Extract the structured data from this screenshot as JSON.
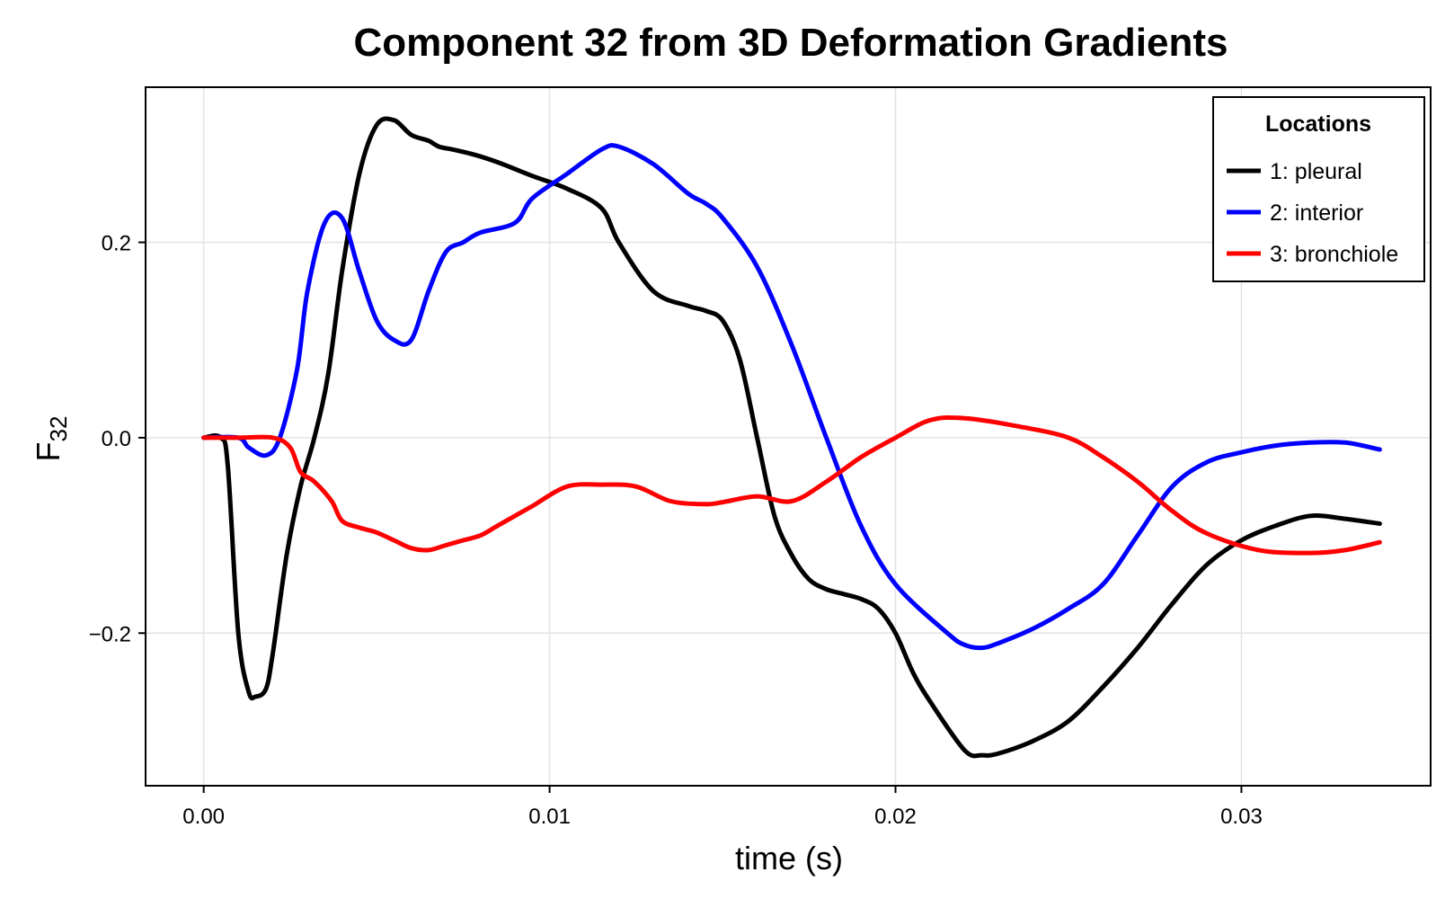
{
  "chart_data": {
    "type": "line",
    "title": "Component 32 from 3D Deformation Gradients",
    "xlabel": "time (s)",
    "ylabel": "F",
    "ylabel_subscript": "32",
    "xlim": [
      -0.00168,
      0.03547
    ],
    "ylim": [
      -0.3562,
      0.3588
    ],
    "xticks": [
      0.0,
      0.01,
      0.02,
      0.03
    ],
    "xtick_labels": [
      "0.00",
      "0.01",
      "0.02",
      "0.03"
    ],
    "yticks": [
      -0.2,
      0.0,
      0.2
    ],
    "ytick_labels": [
      "−0.2",
      "0.0",
      "0.2"
    ],
    "grid": true,
    "legend": {
      "title": "Locations",
      "position": "top-right"
    },
    "series": [
      {
        "name": "1: pleural",
        "color": "#000000",
        "x": [
          0.0,
          0.0005,
          0.0007,
          0.001,
          0.0013,
          0.0015,
          0.0018,
          0.002,
          0.0024,
          0.0028,
          0.0032,
          0.0036,
          0.004,
          0.0045,
          0.005,
          0.0055,
          0.006,
          0.0065,
          0.0068,
          0.0072,
          0.0078,
          0.0085,
          0.0095,
          0.0105,
          0.0115,
          0.012,
          0.013,
          0.014,
          0.0145,
          0.015,
          0.0155,
          0.016,
          0.0165,
          0.017,
          0.0175,
          0.018,
          0.0185,
          0.019,
          0.0195,
          0.02,
          0.0205,
          0.021,
          0.022,
          0.0225,
          0.023,
          0.024,
          0.025,
          0.026,
          0.027,
          0.028,
          0.029,
          0.03,
          0.031,
          0.032,
          0.033,
          0.034
        ],
        "values": [
          0.0,
          0.0,
          -0.03,
          -0.2,
          -0.26,
          -0.265,
          -0.257,
          -0.22,
          -0.12,
          -0.05,
          0.0,
          0.065,
          0.17,
          0.27,
          0.32,
          0.325,
          0.31,
          0.304,
          0.298,
          0.295,
          0.29,
          0.282,
          0.268,
          0.255,
          0.235,
          0.2,
          0.15,
          0.135,
          0.13,
          0.12,
          0.08,
          0.0,
          -0.08,
          -0.12,
          -0.145,
          -0.155,
          -0.16,
          -0.165,
          -0.175,
          -0.2,
          -0.24,
          -0.27,
          -0.32,
          -0.325,
          -0.323,
          -0.31,
          -0.29,
          -0.255,
          -0.215,
          -0.17,
          -0.13,
          -0.105,
          -0.09,
          -0.08,
          -0.083,
          -0.088
        ]
      },
      {
        "name": "2: interior",
        "color": "#0000ff",
        "x": [
          0.0,
          0.001,
          0.0013,
          0.0018,
          0.0022,
          0.0027,
          0.003,
          0.0035,
          0.004,
          0.0045,
          0.005,
          0.0055,
          0.006,
          0.0065,
          0.007,
          0.0075,
          0.008,
          0.009,
          0.0095,
          0.0105,
          0.0115,
          0.012,
          0.013,
          0.014,
          0.0145,
          0.015,
          0.016,
          0.017,
          0.018,
          0.019,
          0.02,
          0.0215,
          0.022,
          0.0225,
          0.023,
          0.024,
          0.025,
          0.026,
          0.027,
          0.028,
          0.029,
          0.03,
          0.031,
          0.032,
          0.033,
          0.034
        ],
        "values": [
          0.0,
          0.0,
          -0.01,
          -0.018,
          0.0,
          0.07,
          0.15,
          0.22,
          0.225,
          0.17,
          0.12,
          0.1,
          0.1,
          0.15,
          0.19,
          0.2,
          0.21,
          0.22,
          0.245,
          0.27,
          0.295,
          0.298,
          0.28,
          0.25,
          0.24,
          0.225,
          0.175,
          0.095,
          0.0,
          -0.09,
          -0.15,
          -0.2,
          -0.212,
          -0.215,
          -0.21,
          -0.195,
          -0.175,
          -0.15,
          -0.1,
          -0.05,
          -0.025,
          -0.015,
          -0.008,
          -0.005,
          -0.005,
          -0.012
        ]
      },
      {
        "name": "3: bronchiole",
        "color": "#ff0000",
        "x": [
          0.0,
          0.001,
          0.002,
          0.0025,
          0.0028,
          0.0032,
          0.0037,
          0.004,
          0.0045,
          0.005,
          0.0055,
          0.006,
          0.0065,
          0.007,
          0.0075,
          0.008,
          0.0085,
          0.009,
          0.0095,
          0.0105,
          0.0115,
          0.0125,
          0.0135,
          0.0145,
          0.015,
          0.016,
          0.017,
          0.018,
          0.019,
          0.02,
          0.021,
          0.022,
          0.0235,
          0.025,
          0.026,
          0.027,
          0.028,
          0.029,
          0.0305,
          0.032,
          0.033,
          0.034
        ],
        "values": [
          0.0,
          0.0,
          0.0,
          -0.01,
          -0.035,
          -0.045,
          -0.065,
          -0.085,
          -0.092,
          -0.097,
          -0.105,
          -0.113,
          -0.115,
          -0.11,
          -0.105,
          -0.1,
          -0.09,
          -0.08,
          -0.07,
          -0.05,
          -0.048,
          -0.05,
          -0.065,
          -0.068,
          -0.066,
          -0.06,
          -0.065,
          -0.045,
          -0.02,
          0.0,
          0.018,
          0.02,
          0.012,
          0.0,
          -0.02,
          -0.045,
          -0.075,
          -0.098,
          -0.115,
          -0.118,
          -0.115,
          -0.107
        ]
      }
    ]
  }
}
